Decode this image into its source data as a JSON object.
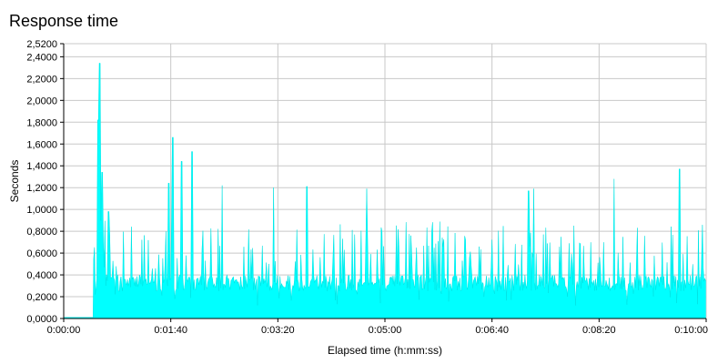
{
  "chart_data": {
    "type": "area",
    "title": "Response time",
    "xlabel": "Elapsed time (h:mm:ss)",
    "ylabel": "Seconds",
    "xlim": [
      0,
      600
    ],
    "ylim": [
      0,
      2.52
    ],
    "grid": true,
    "series_color": "#00FFFF",
    "outline_color": "#00C8C8",
    "y_ticks": [
      {
        "value": 0.0,
        "label": "0,0000"
      },
      {
        "value": 0.2,
        "label": "0,2000"
      },
      {
        "value": 0.4,
        "label": "0,4000"
      },
      {
        "value": 0.6,
        "label": "0,6000"
      },
      {
        "value": 0.8,
        "label": "0,8000"
      },
      {
        "value": 1.0,
        "label": "1,0000"
      },
      {
        "value": 1.2,
        "label": "1,2000"
      },
      {
        "value": 1.4,
        "label": "1,4000"
      },
      {
        "value": 1.6,
        "label": "1,6000"
      },
      {
        "value": 1.8,
        "label": "1,8000"
      },
      {
        "value": 2.0,
        "label": "2,0000"
      },
      {
        "value": 2.2,
        "label": "2,2000"
      },
      {
        "value": 2.4,
        "label": "2,4000"
      },
      {
        "value": 2.52,
        "label": "2,5200"
      }
    ],
    "x_ticks": [
      {
        "value": 0,
        "label": "0:00:00"
      },
      {
        "value": 100,
        "label": "0:01:40"
      },
      {
        "value": 200,
        "label": "0:03:20"
      },
      {
        "value": 300,
        "label": "0:05:00"
      },
      {
        "value": 400,
        "label": "0:06:40"
      },
      {
        "value": 500,
        "label": "0:08:20"
      },
      {
        "value": 600,
        "label": "0:10:00"
      }
    ],
    "series": [
      {
        "name": "Response time",
        "start_time": 28,
        "end_time": 600,
        "baseline_before_start": 0.01,
        "base_level": [
          0.25,
          0.4
        ],
        "spike_probability": 0.18,
        "spike_range": [
          0.45,
          0.9
        ],
        "peaks": [
          {
            "t": 32.0,
            "v": 1.82
          },
          {
            "t": 33.5,
            "v": 2.34
          },
          {
            "t": 36.0,
            "v": 1.34
          },
          {
            "t": 42.0,
            "v": 0.98
          },
          {
            "t": 98.0,
            "v": 1.24
          },
          {
            "t": 102.0,
            "v": 1.66
          },
          {
            "t": 110.0,
            "v": 1.44
          },
          {
            "t": 120.0,
            "v": 1.53
          },
          {
            "t": 148.0,
            "v": 1.22
          },
          {
            "t": 196.0,
            "v": 1.2
          },
          {
            "t": 227.0,
            "v": 1.21
          },
          {
            "t": 283.0,
            "v": 1.19
          },
          {
            "t": 434.0,
            "v": 1.17
          },
          {
            "t": 439.0,
            "v": 1.19
          },
          {
            "t": 514.0,
            "v": 1.28
          },
          {
            "t": 575.0,
            "v": 1.37
          }
        ]
      }
    ]
  }
}
